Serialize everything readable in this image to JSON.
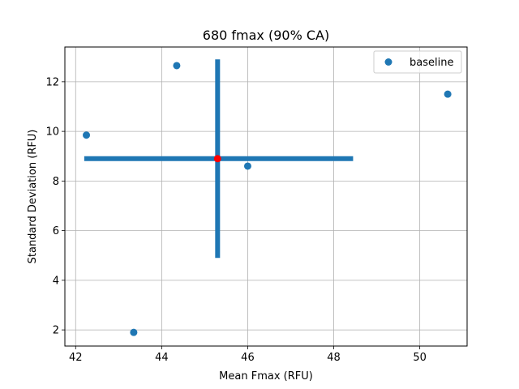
{
  "chart_data": {
    "type": "scatter",
    "title": "680 fmax (90% CA)",
    "xlabel": "Mean Fmax (RFU)",
    "ylabel": "Standard Deviation (RFU)",
    "xlim": [
      41.75,
      51.1
    ],
    "ylim": [
      1.35,
      13.4
    ],
    "xticks": [
      42,
      44,
      46,
      48,
      50
    ],
    "yticks": [
      2,
      4,
      6,
      8,
      10,
      12
    ],
    "grid": true,
    "legend_position": "top-right",
    "series": [
      {
        "name": "baseline",
        "color": "#1f77b4",
        "points": [
          {
            "x": 42.25,
            "y": 9.85
          },
          {
            "x": 43.35,
            "y": 1.9
          },
          {
            "x": 44.35,
            "y": 12.65
          },
          {
            "x": 46.0,
            "y": 8.6
          },
          {
            "x": 50.65,
            "y": 11.5
          }
        ]
      }
    ],
    "center": {
      "x": 45.3,
      "y": 8.9,
      "color": "#ff0000"
    },
    "error_bars": {
      "color": "#1f77b4",
      "horizontal": {
        "x_min": 42.2,
        "x_max": 48.45,
        "y": 8.9
      },
      "vertical": {
        "x": 45.3,
        "y_min": 4.9,
        "y_max": 12.9
      }
    }
  }
}
